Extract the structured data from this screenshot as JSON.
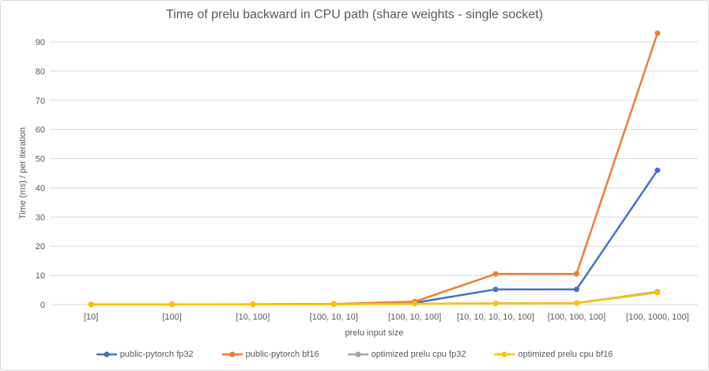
{
  "chart_data": {
    "type": "line",
    "title": "Time of prelu backward in CPU path (share weights - single socket)",
    "xlabel": "prelu input size",
    "ylabel": "Time (ms) / per iteration",
    "categories": [
      "[10]",
      "[100]",
      "[10, 100]",
      "[100, 10, 10]",
      "[100, 10, 100]",
      "[10, 10, 10, 10, 100]",
      "[100, 100, 100]",
      "[100, 1000, 100]"
    ],
    "series": [
      {
        "name": "public-pytorch fp32",
        "color": "#4472C4",
        "values": [
          0.05,
          0.06,
          0.08,
          0.15,
          0.6,
          5.2,
          5.2,
          46
        ]
      },
      {
        "name": "public-pytorch bf16",
        "color": "#ED7D31",
        "values": [
          0.05,
          0.06,
          0.1,
          0.2,
          1.0,
          10.5,
          10.5,
          93
        ]
      },
      {
        "name": "optimized prelu cpu fp32",
        "color": "#A5A5A5",
        "values": [
          0.04,
          0.05,
          0.06,
          0.1,
          0.3,
          0.4,
          0.5,
          4.4
        ]
      },
      {
        "name": "optimized prelu cpu bf16",
        "color": "#FFC000",
        "values": [
          0.04,
          0.05,
          0.06,
          0.1,
          0.3,
          0.4,
          0.5,
          4.1
        ]
      }
    ],
    "yticks": [
      0,
      10,
      20,
      30,
      40,
      50,
      60,
      70,
      80,
      90
    ],
    "ylim": [
      0,
      95
    ],
    "grid": true,
    "legend_position": "bottom",
    "colors": {
      "gridline": "#d9d9d9",
      "axis_text": "#595959",
      "border": "#d9d9d9"
    }
  }
}
